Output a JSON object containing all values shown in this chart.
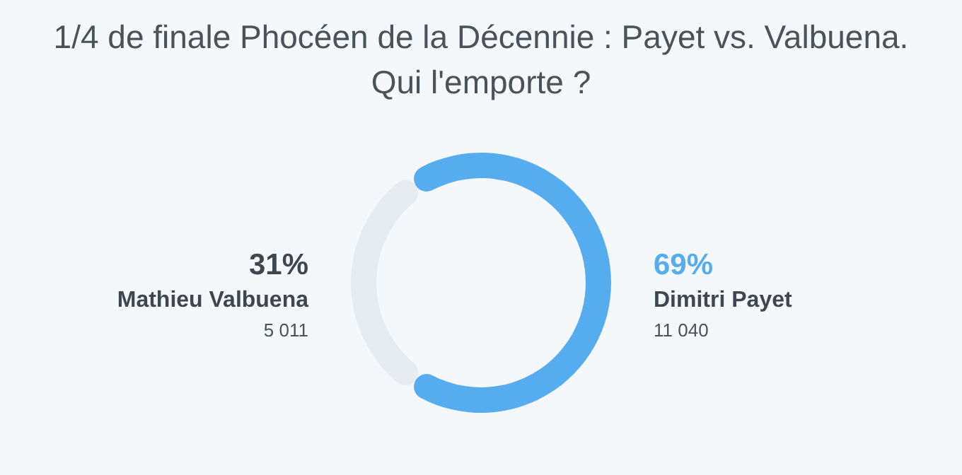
{
  "chart_data": {
    "type": "donut",
    "title": "1/4 de finale Phocéen de la Décennie : Payet vs. Valbuena. Qui l'emporte ?",
    "categories": [
      "Mathieu Valbuena",
      "Dimitri Payet"
    ],
    "values": [
      5011,
      11040
    ],
    "value_labels": [
      "5 011",
      "11 040"
    ],
    "annotations": [
      "31%",
      "69%"
    ],
    "colors": [
      "#e6ecf0",
      "#55acee"
    ]
  }
}
